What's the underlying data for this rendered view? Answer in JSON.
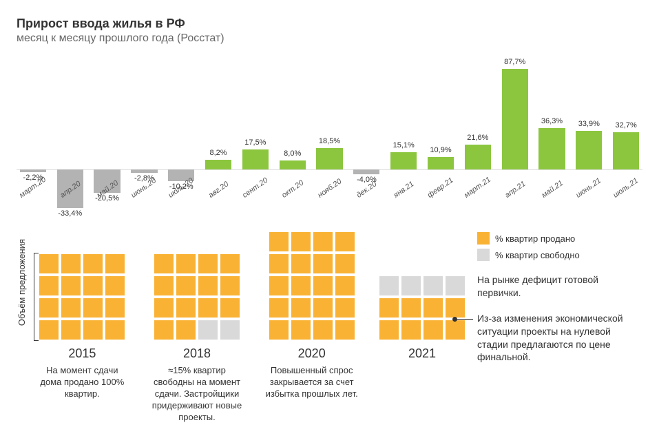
{
  "header": {
    "title": "Прирост ввода жилья в РФ",
    "subtitle": "месяц к месяцу прошлого года (Росстат)"
  },
  "bar_chart": {
    "type": "bar",
    "pos_color": "#8cc63f",
    "neg_color": "#b3b3b3",
    "value_font_size": 11,
    "xlabel_font_size": 11,
    "max_abs": 90,
    "bars": [
      {
        "label": "март.20",
        "value": -2.2,
        "display": "-2,2%"
      },
      {
        "label": "апр.20",
        "value": -33.4,
        "display": "-33,4%"
      },
      {
        "label": "май.20",
        "value": -20.5,
        "display": "-20,5%"
      },
      {
        "label": "июнь.20",
        "value": -2.8,
        "display": "-2,8%"
      },
      {
        "label": "июль.20",
        "value": -10.2,
        "display": "-10,2%"
      },
      {
        "label": "авг.20",
        "value": 8.2,
        "display": "8,2%"
      },
      {
        "label": "сент.20",
        "value": 17.5,
        "display": "17,5%"
      },
      {
        "label": "окт.20",
        "value": 8.0,
        "display": "8,0%"
      },
      {
        "label": "нояб.20",
        "value": 18.5,
        "display": "18,5%"
      },
      {
        "label": "дек.20",
        "value": -4.0,
        "display": "-4,0%"
      },
      {
        "label": "янв.21",
        "value": 15.1,
        "display": "15,1%"
      },
      {
        "label": "февр.21",
        "value": 10.9,
        "display": "10,9%"
      },
      {
        "label": "март.21",
        "value": 21.6,
        "display": "21,6%"
      },
      {
        "label": "апр.21",
        "value": 87.7,
        "display": "87,7%"
      },
      {
        "label": "май.21",
        "value": 36.3,
        "display": "36,3%"
      },
      {
        "label": "июнь.21",
        "value": 33.9,
        "display": "33,9%"
      },
      {
        "label": "июль.21",
        "value": 32.7,
        "display": "32,7%"
      }
    ]
  },
  "waffle": {
    "y_axis_label": "Объём предложения",
    "sold_color": "#f9b233",
    "free_color": "#d9d9d9",
    "cols": 4,
    "legend": {
      "sold": "% квартир продано",
      "free": "% квартир свободно"
    },
    "panels": [
      {
        "year": "2015",
        "rows": 4,
        "free_cells": 0,
        "caption": "На момент сдачи дома продано 100% квартир."
      },
      {
        "year": "2018",
        "rows": 4,
        "free_cells": 2,
        "caption": "≈15% квартир свободны на момент сдачи. Застройщики придерживают новые проекты."
      },
      {
        "year": "2020",
        "rows": 5,
        "free_cells": 0,
        "caption": "Повышенный спрос закрывается за счет избытка прошлых лет."
      },
      {
        "year": "2021",
        "rows": 3,
        "free_cells": 4,
        "caption": ""
      }
    ],
    "side_text_1": "На рынке дефицит готовой первички.",
    "side_text_2": "Из-за изменения экономической ситуации проекты на нулевой стадии предлагаются по цене финальной."
  }
}
